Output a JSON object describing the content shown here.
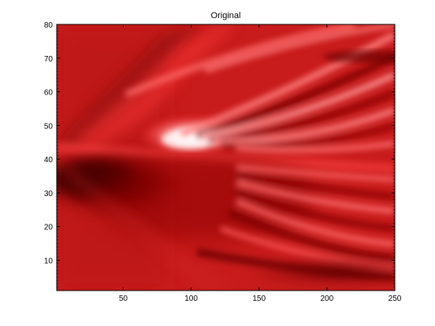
{
  "chart_data": {
    "type": "heatmap",
    "title": "Original",
    "xlabel": "",
    "ylabel": "",
    "xlim": [
      1,
      250
    ],
    "ylim": [
      1,
      80
    ],
    "x_ticks": [
      50,
      100,
      150,
      200,
      250
    ],
    "y_ticks": [
      10,
      20,
      30,
      40,
      50,
      60,
      70,
      80
    ],
    "colormap": "red (dark red -> red -> white)",
    "colors": {
      "base": "#c81b1b",
      "dark": "#5a0000",
      "bright": "#ff5a5a",
      "white": "#ffffff"
    },
    "grid": false,
    "legend": "none"
  }
}
